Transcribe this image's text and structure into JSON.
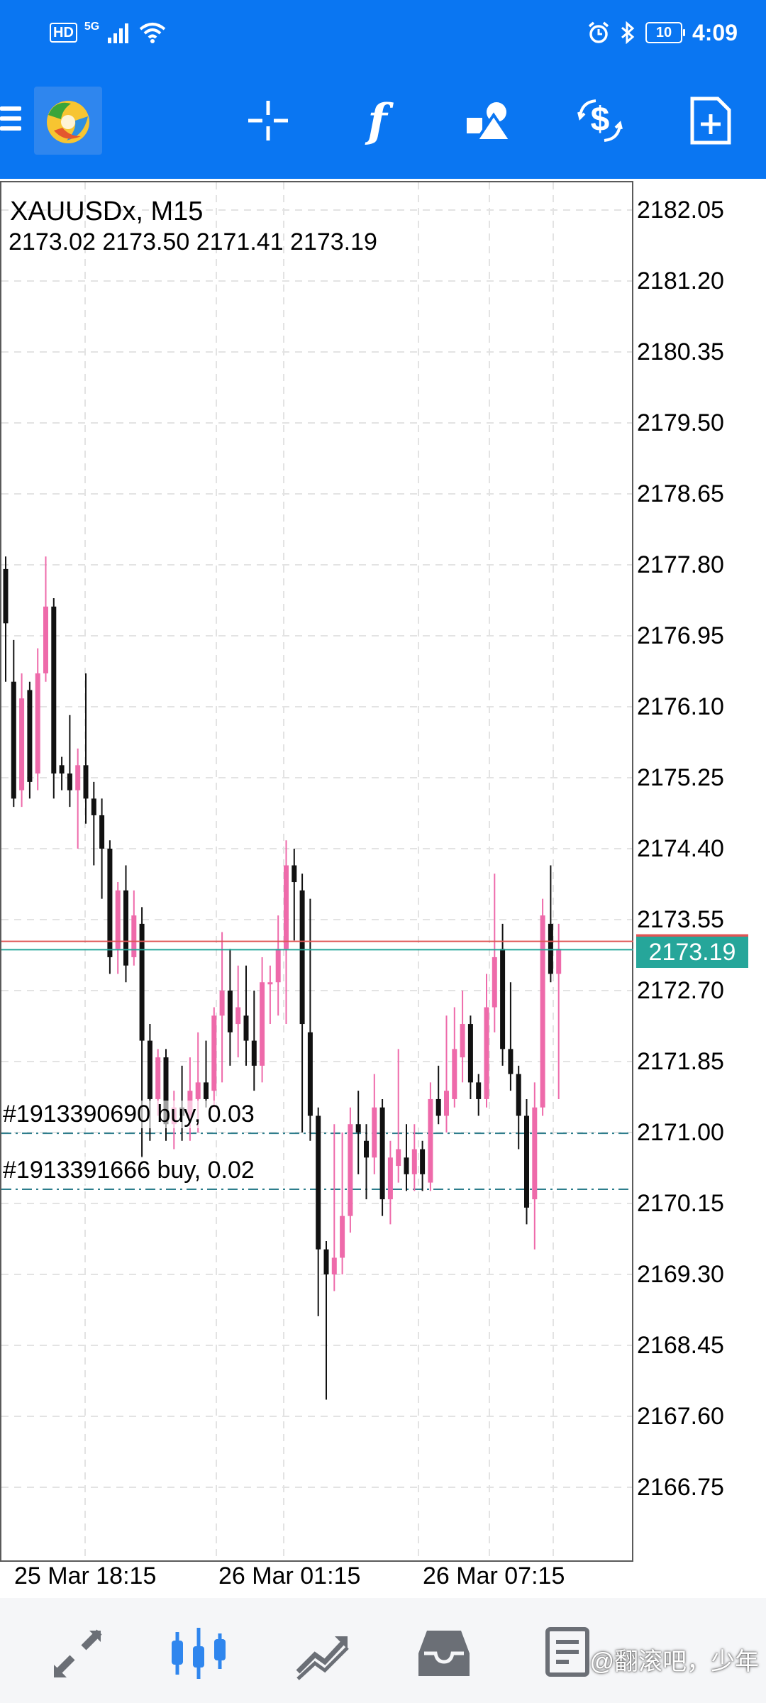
{
  "status_bar": {
    "hd": "HD",
    "network": "5G",
    "battery": "10",
    "time": "4:09"
  },
  "toolbar": {
    "icons": [
      "menu-icon",
      "app-logo",
      "crosshair-icon",
      "indicators-icon",
      "objects-icon",
      "trade-icon",
      "new-order-icon"
    ],
    "indicator_glyph": "f"
  },
  "chart": {
    "symbol": "XAUUSDx, M15",
    "ohlc": "2173.02 2173.50 2171.41 2173.19",
    "bid_price": "2173.19",
    "colors": {
      "bull": "#ee6aaa",
      "bear": "#111111",
      "bid_line": "#26a69a",
      "ask_line": "#e05555",
      "grid": "#e3e3e3"
    },
    "price_axis": [
      "2182.05",
      "2181.20",
      "2180.35",
      "2179.50",
      "2178.65",
      "2177.80",
      "2176.95",
      "2176.10",
      "2175.25",
      "2174.40",
      "2173.55",
      "2172.70",
      "2171.85",
      "2171.00",
      "2170.15",
      "2169.30",
      "2168.45",
      "2167.60",
      "2166.75"
    ],
    "time_axis": [
      "25 Mar 18:15",
      "26 Mar 01:15",
      "26 Mar 07:15"
    ],
    "orders": [
      {
        "label": "#1913390690 buy, 0.03",
        "price": 2170.99
      },
      {
        "label": "#1913391666 buy, 0.02",
        "price": 2170.32
      }
    ],
    "bid_value": 2173.19,
    "ask_value": 2173.29,
    "candles": [
      [
        2177.75,
        2177.1,
        2177.9,
        2176.4
      ],
      [
        2176.4,
        2175.0,
        2176.9,
        2174.9
      ],
      [
        2175.1,
        2176.2,
        2176.5,
        2174.9
      ],
      [
        2176.3,
        2175.2,
        2176.4,
        2175.0
      ],
      [
        2175.3,
        2176.5,
        2176.8,
        2175.1
      ],
      [
        2176.5,
        2177.3,
        2177.9,
        2176.4
      ],
      [
        2177.3,
        2175.3,
        2177.4,
        2175.0
      ],
      [
        2175.4,
        2175.3,
        2175.5,
        2175.1
      ],
      [
        2175.3,
        2175.1,
        2176.0,
        2174.9
      ],
      [
        2175.1,
        2175.4,
        2175.6,
        2174.4
      ],
      [
        2175.4,
        2175.0,
        2176.5,
        2174.7
      ],
      [
        2175.0,
        2174.8,
        2175.2,
        2174.2
      ],
      [
        2174.8,
        2174.4,
        2175.0,
        2173.8
      ],
      [
        2174.4,
        2173.1,
        2174.5,
        2172.9
      ],
      [
        2173.2,
        2173.9,
        2174.0,
        2172.9
      ],
      [
        2173.9,
        2173.0,
        2174.2,
        2172.8
      ],
      [
        2173.1,
        2173.6,
        2173.9,
        2173.0
      ],
      [
        2173.5,
        2172.1,
        2173.7,
        2170.7
      ],
      [
        2172.1,
        2171.4,
        2172.3,
        2170.9
      ],
      [
        2171.4,
        2171.9,
        2172.0,
        2171.2
      ],
      [
        2171.9,
        2171.1,
        2172.0,
        2170.9
      ],
      [
        2171.1,
        2171.3,
        2171.5,
        2170.8
      ],
      [
        2171.3,
        2171.2,
        2171.8,
        2170.9
      ],
      [
        2171.2,
        2171.5,
        2171.9,
        2170.9
      ],
      [
        2171.4,
        2171.6,
        2172.2,
        2171.0
      ],
      [
        2171.6,
        2171.4,
        2172.1,
        2171.3
      ],
      [
        2171.5,
        2172.4,
        2172.5,
        2171.3
      ],
      [
        2172.4,
        2172.7,
        2173.4,
        2171.6
      ],
      [
        2172.7,
        2172.2,
        2173.2,
        2171.8
      ],
      [
        2172.3,
        2172.5,
        2173.0,
        2171.9
      ],
      [
        2172.4,
        2172.1,
        2173.0,
        2171.8
      ],
      [
        2172.1,
        2171.8,
        2172.7,
        2171.5
      ],
      [
        2171.8,
        2172.8,
        2173.1,
        2171.6
      ],
      [
        2172.8,
        2172.8,
        2173.0,
        2172.3
      ],
      [
        2172.8,
        2173.2,
        2173.6,
        2172.4
      ],
      [
        2173.2,
        2174.2,
        2174.5,
        2172.3
      ],
      [
        2174.2,
        2174.0,
        2174.4,
        2173.3
      ],
      [
        2173.9,
        2172.3,
        2174.1,
        2171.0
      ],
      [
        2172.2,
        2171.2,
        2173.8,
        2170.9
      ],
      [
        2171.2,
        2169.6,
        2171.3,
        2168.8
      ],
      [
        2169.6,
        2169.3,
        2169.7,
        2167.8
      ],
      [
        2169.3,
        2169.5,
        2171.1,
        2169.1
      ],
      [
        2169.5,
        2170.0,
        2171.0,
        2169.3
      ],
      [
        2170.0,
        2171.1,
        2171.3,
        2169.8
      ],
      [
        2171.1,
        2171.0,
        2171.5,
        2170.5
      ],
      [
        2170.9,
        2170.7,
        2171.1,
        2170.2
      ],
      [
        2170.7,
        2171.3,
        2171.7,
        2170.5
      ],
      [
        2171.3,
        2170.2,
        2171.4,
        2170.0
      ],
      [
        2170.2,
        2170.7,
        2170.9,
        2169.9
      ],
      [
        2170.6,
        2170.8,
        2172.0,
        2170.4
      ],
      [
        2170.7,
        2170.5,
        2171.1,
        2170.3
      ],
      [
        2170.5,
        2170.8,
        2171.1,
        2170.3
      ],
      [
        2170.8,
        2170.5,
        2170.9,
        2170.3
      ],
      [
        2170.4,
        2171.4,
        2171.6,
        2170.3
      ],
      [
        2171.4,
        2171.2,
        2171.8,
        2171.1
      ],
      [
        2171.2,
        2171.5,
        2172.4,
        2171.0
      ],
      [
        2171.4,
        2172.0,
        2172.5,
        2171.3
      ],
      [
        2171.9,
        2172.3,
        2172.7,
        2171.6
      ],
      [
        2172.3,
        2171.6,
        2172.4,
        2171.4
      ],
      [
        2171.6,
        2171.4,
        2171.7,
        2171.2
      ],
      [
        2171.4,
        2172.5,
        2172.9,
        2171.3
      ],
      [
        2172.5,
        2173.1,
        2174.1,
        2172.2
      ],
      [
        2173.2,
        2172.0,
        2173.5,
        2171.8
      ],
      [
        2172.0,
        2171.7,
        2172.8,
        2171.5
      ],
      [
        2171.7,
        2171.2,
        2171.8,
        2170.8
      ],
      [
        2171.2,
        2170.1,
        2171.4,
        2169.9
      ],
      [
        2170.2,
        2171.3,
        2171.6,
        2169.6
      ],
      [
        2171.3,
        2173.6,
        2173.8,
        2171.2
      ],
      [
        2173.5,
        2172.9,
        2174.2,
        2172.8
      ],
      [
        2172.9,
        2173.2,
        2173.5,
        2171.4
      ]
    ]
  },
  "bottom_nav": {
    "icons": [
      "quotes-icon",
      "chart-icon",
      "trade-icon",
      "history-icon",
      "messages-icon"
    ],
    "watermark": "@翻滚吧，少年"
  }
}
